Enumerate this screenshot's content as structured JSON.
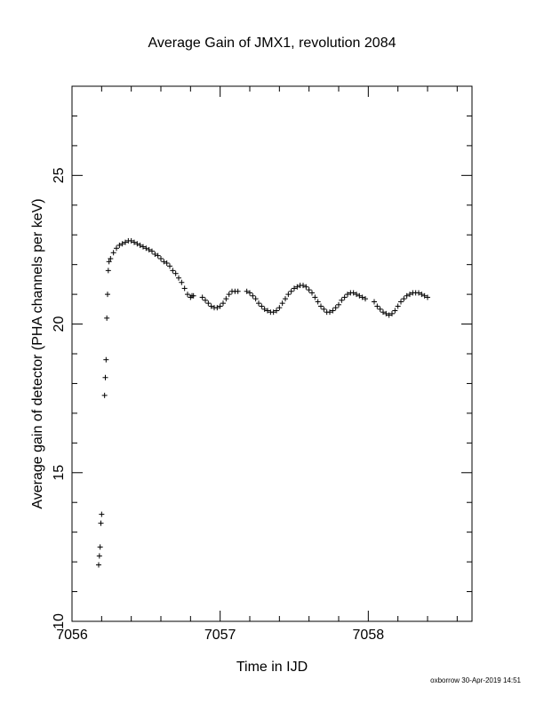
{
  "chart_data": {
    "type": "scatter",
    "title": "Average Gain of JMX1, revolution 2084",
    "xlabel": "Time in IJD",
    "ylabel": "Average gain of detector (PHA channels per keV)",
    "xlim": [
      7056,
      7058.7
    ],
    "ylim": [
      10,
      28
    ],
    "x_ticks": [
      7056,
      7057,
      7058
    ],
    "x_tick_labels": [
      "7056",
      "7057",
      "7058"
    ],
    "y_ticks": [
      10,
      15,
      20,
      25
    ],
    "y_tick_labels": [
      "10",
      "15",
      "20",
      "25"
    ],
    "marker": "+",
    "grid": false,
    "legend": "none",
    "series": [
      {
        "x": [
          7056.18,
          7056.185,
          7056.19,
          7056.195,
          7056.2,
          7056.22,
          7056.225,
          7056.23,
          7056.235,
          7056.24,
          7056.245,
          7056.25,
          7056.26,
          7056.28,
          7056.3,
          7056.32,
          7056.34,
          7056.36,
          7056.38,
          7056.4,
          7056.42,
          7056.44,
          7056.46,
          7056.48,
          7056.5,
          7056.52,
          7056.54,
          7056.56,
          7056.58,
          7056.6,
          7056.62,
          7056.64,
          7056.66,
          7056.68,
          7056.7,
          7056.72,
          7056.74,
          7056.76,
          7056.78,
          7056.8,
          7056.81,
          7056.82,
          7056.88,
          7056.9,
          7056.92,
          7056.94,
          7056.96,
          7056.98,
          7057.0,
          7057.02,
          7057.04,
          7057.06,
          7057.08,
          7057.1,
          7057.12,
          7057.18,
          7057.2,
          7057.22,
          7057.24,
          7057.26,
          7057.28,
          7057.3,
          7057.32,
          7057.34,
          7057.36,
          7057.38,
          7057.4,
          7057.42,
          7057.44,
          7057.46,
          7057.48,
          7057.5,
          7057.52,
          7057.54,
          7057.56,
          7057.58,
          7057.6,
          7057.62,
          7057.64,
          7057.66,
          7057.68,
          7057.7,
          7057.72,
          7057.74,
          7057.76,
          7057.78,
          7057.8,
          7057.82,
          7057.84,
          7057.86,
          7057.88,
          7057.9,
          7057.92,
          7057.94,
          7057.96,
          7057.98,
          7058.04,
          7058.06,
          7058.08,
          7058.1,
          7058.12,
          7058.14,
          7058.16,
          7058.18,
          7058.2,
          7058.22,
          7058.24,
          7058.26,
          7058.28,
          7058.3,
          7058.32,
          7058.34,
          7058.36,
          7058.38,
          7058.4
        ],
        "y": [
          11.9,
          12.2,
          12.5,
          13.3,
          13.6,
          17.6,
          18.2,
          18.8,
          20.2,
          21.0,
          21.8,
          22.1,
          22.2,
          22.4,
          22.55,
          22.65,
          22.7,
          22.75,
          22.8,
          22.8,
          22.75,
          22.7,
          22.65,
          22.6,
          22.55,
          22.5,
          22.45,
          22.35,
          22.3,
          22.2,
          22.1,
          22.05,
          21.95,
          21.8,
          21.7,
          21.55,
          21.4,
          21.2,
          21.0,
          20.9,
          20.95,
          20.95,
          20.9,
          20.8,
          20.7,
          20.6,
          20.55,
          20.55,
          20.6,
          20.7,
          20.85,
          21.0,
          21.1,
          21.1,
          21.1,
          21.1,
          21.05,
          20.95,
          20.85,
          20.7,
          20.6,
          20.5,
          20.45,
          20.4,
          20.4,
          20.45,
          20.55,
          20.7,
          20.85,
          21.0,
          21.1,
          21.2,
          21.25,
          21.3,
          21.3,
          21.25,
          21.15,
          21.05,
          20.9,
          20.75,
          20.6,
          20.5,
          20.4,
          20.4,
          20.45,
          20.55,
          20.65,
          20.8,
          20.9,
          21.0,
          21.05,
          21.05,
          21.0,
          20.95,
          20.9,
          20.85,
          20.75,
          20.6,
          20.5,
          20.4,
          20.35,
          20.3,
          20.35,
          20.45,
          20.6,
          20.75,
          20.85,
          20.95,
          21.0,
          21.05,
          21.05,
          21.05,
          21.0,
          20.95,
          20.9
        ]
      }
    ]
  },
  "footer": "oxborrow 30-Apr-2019 14:51"
}
